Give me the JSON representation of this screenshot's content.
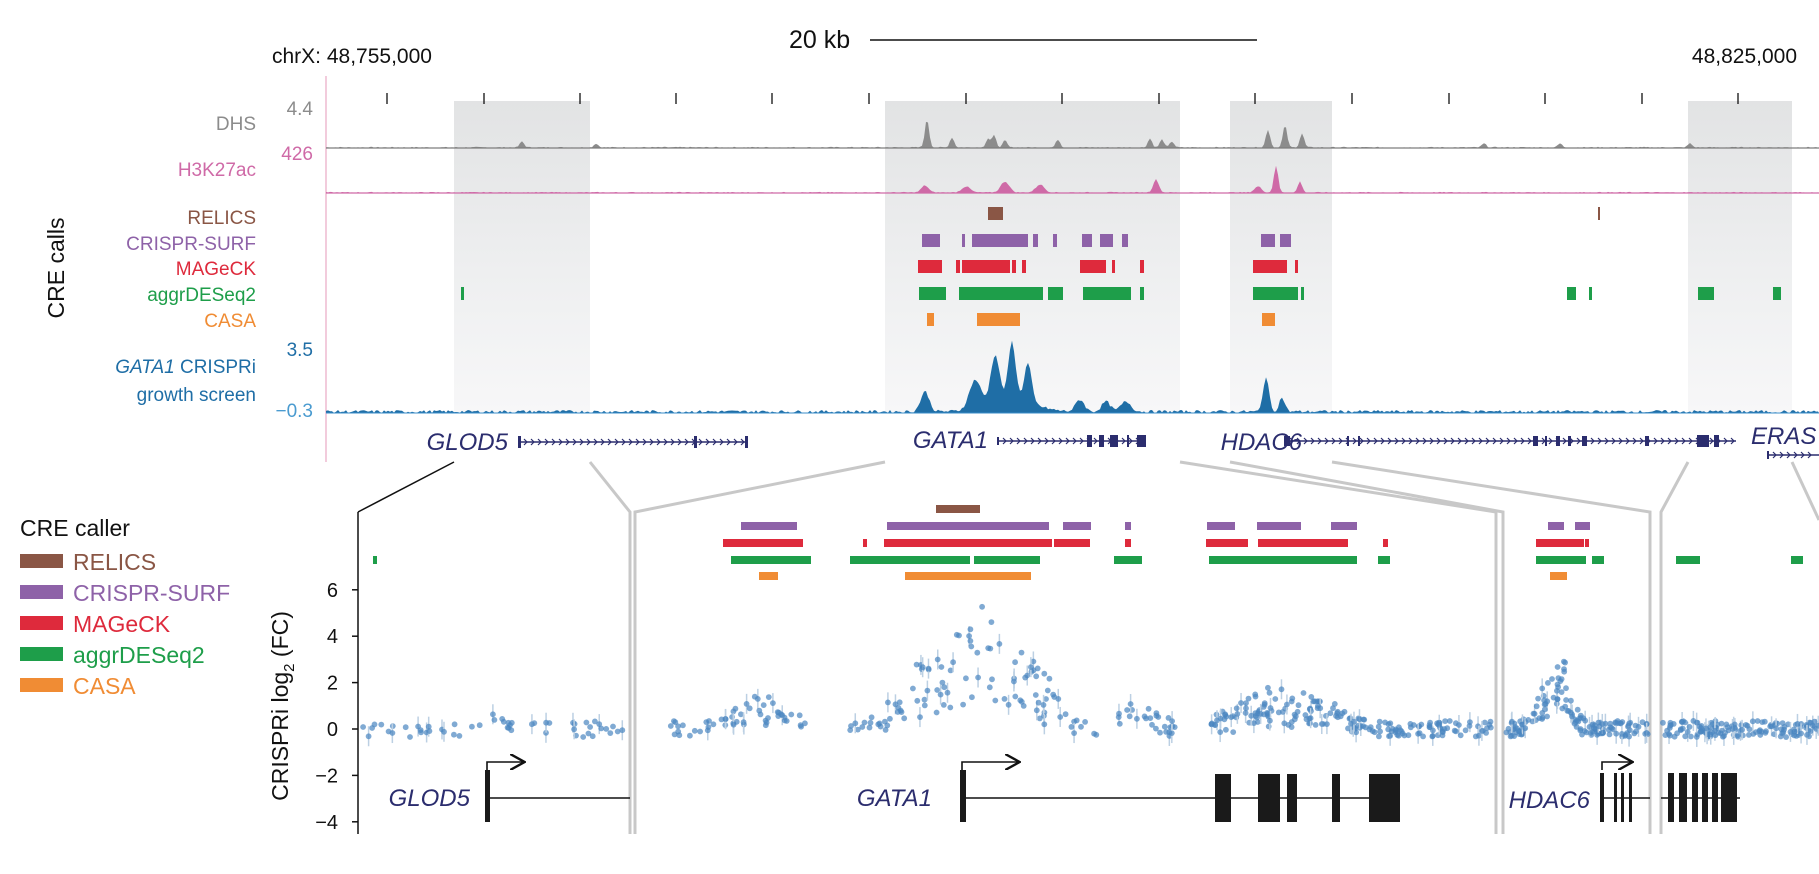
{
  "header": {
    "chrom_left": "chrX: 48,755,000",
    "scale_bar": "20 kb",
    "chrom_right": "48,825,000"
  },
  "tracks": {
    "dhs": {
      "label": "DHS",
      "max": "4.4",
      "color": "#8c8c8c"
    },
    "h3k27ac": {
      "label": "H3K27ac",
      "max": "426",
      "color": "#cf6aa7"
    },
    "cre_axis": "CRE calls",
    "callers": [
      {
        "name": "RELICS",
        "color": "#8a5645"
      },
      {
        "name": "CRISPR-SURF",
        "color": "#8e62a8"
      },
      {
        "name": "MAGeCK",
        "color": "#de2a3c"
      },
      {
        "name": "aggrDESeq2",
        "color": "#1e9e4a"
      },
      {
        "name": "CASA",
        "color": "#f08c34"
      }
    ],
    "screen": {
      "label_gene": "GATA1",
      "label_rest": " CRISPRi",
      "label_line2": "growth screen",
      "max": "3.5",
      "min": "−0.3",
      "color": "#1f6ea6"
    }
  },
  "genes_top": [
    "GLOD5",
    "GATA1",
    "HDAC6",
    "ERAS"
  ],
  "legend": {
    "title": "CRE caller",
    "items": [
      {
        "name": "RELICS",
        "color": "#8a5645"
      },
      {
        "name": "CRISPR-SURF",
        "color": "#8e62a8"
      },
      {
        "name": "MAGeCK",
        "color": "#de2a3c"
      },
      {
        "name": "aggrDESeq2",
        "color": "#1e9e4a"
      },
      {
        "name": "CASA",
        "color": "#f08c34"
      }
    ]
  },
  "zoom": {
    "ylabel_prefix": "CRISPRi log",
    "ylabel_sub": "2",
    "ylabel_suffix": " (FC)",
    "yticks": [
      "6",
      "4",
      "2",
      "0",
      "−2",
      "−4"
    ],
    "genes": [
      "GLOD5",
      "GATA1",
      "HDAC6"
    ]
  },
  "colors": {
    "highlight": "#e4e5e6",
    "gene": "#2b2d6e",
    "point": "#4a86c0"
  }
}
